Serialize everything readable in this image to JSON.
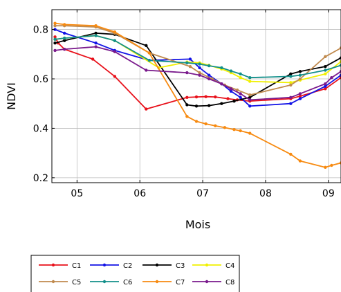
{
  "chart_data": {
    "type": "line",
    "xlabel": "Mois",
    "ylabel": "NDVI",
    "xlim": [
      4.6,
      9.2
    ],
    "ylim": [
      0.18,
      0.88
    ],
    "xticks": [
      5,
      6,
      7,
      8,
      9
    ],
    "xtick_labels": [
      "05",
      "06",
      "07",
      "08",
      "09"
    ],
    "yticks": [
      0.2,
      0.4,
      0.6,
      0.8
    ],
    "ytick_labels": [
      "0.2",
      "0.4",
      "0.6",
      "0.8"
    ],
    "grid": true,
    "legend_position": "bottom",
    "series": [
      {
        "name": "C1",
        "color": "#e8101a",
        "x": [
          4.65,
          4.7,
          4.8,
          5.25,
          5.6,
          6.1,
          6.75,
          6.9,
          7.05,
          7.2,
          7.4,
          7.55,
          7.75,
          8.4,
          8.55,
          8.95,
          9.2
        ],
        "y": [
          0.77,
          0.745,
          0.72,
          0.68,
          0.61,
          0.478,
          0.525,
          0.527,
          0.528,
          0.527,
          0.52,
          0.515,
          0.51,
          0.52,
          0.53,
          0.56,
          0.605
        ]
      },
      {
        "name": "C2",
        "color": "#1212e6",
        "x": [
          4.65,
          4.8,
          5.3,
          5.6,
          6.15,
          6.8,
          6.95,
          7.1,
          7.3,
          7.45,
          7.6,
          7.75,
          8.4,
          8.55,
          8.95,
          9.2
        ],
        "y": [
          0.8,
          0.785,
          0.745,
          0.715,
          0.675,
          0.68,
          0.645,
          0.615,
          0.58,
          0.55,
          0.525,
          0.49,
          0.5,
          0.52,
          0.57,
          0.615
        ]
      },
      {
        "name": "C3",
        "color": "#000000",
        "x": [
          4.65,
          4.8,
          5.3,
          5.6,
          6.1,
          6.75,
          6.9,
          7.1,
          7.3,
          7.5,
          7.75,
          8.4,
          8.55,
          8.95,
          9.2
        ],
        "y": [
          0.745,
          0.755,
          0.785,
          0.78,
          0.735,
          0.495,
          0.49,
          0.492,
          0.5,
          0.51,
          0.525,
          0.62,
          0.63,
          0.65,
          0.685
        ]
      },
      {
        "name": "C4",
        "color": "#f0f000",
        "x": [
          4.65,
          4.8,
          5.3,
          5.6,
          6.3,
          6.75,
          6.95,
          7.1,
          7.3,
          7.45,
          7.6,
          7.75,
          8.4,
          8.55,
          8.95,
          9.2
        ],
        "y": [
          0.76,
          0.765,
          0.775,
          0.755,
          0.645,
          0.668,
          0.665,
          0.655,
          0.64,
          0.625,
          0.605,
          0.59,
          0.585,
          0.595,
          0.62,
          0.67
        ]
      },
      {
        "name": "C5",
        "color": "#c08a4e",
        "x": [
          4.65,
          4.8,
          5.3,
          5.6,
          6.15,
          6.8,
          6.95,
          7.15,
          7.35,
          7.55,
          7.75,
          8.4,
          8.55,
          8.95,
          9.2
        ],
        "y": [
          0.815,
          0.815,
          0.81,
          0.785,
          0.705,
          0.65,
          0.625,
          0.6,
          0.575,
          0.555,
          0.535,
          0.575,
          0.6,
          0.69,
          0.725
        ]
      },
      {
        "name": "C6",
        "color": "#128f8a",
        "x": [
          4.65,
          4.8,
          5.3,
          5.6,
          6.15,
          6.75,
          6.95,
          7.1,
          7.3,
          7.45,
          7.6,
          7.75,
          8.4,
          8.55,
          8.95,
          9.2
        ],
        "y": [
          0.76,
          0.765,
          0.775,
          0.755,
          0.675,
          0.665,
          0.66,
          0.653,
          0.645,
          0.632,
          0.62,
          0.605,
          0.61,
          0.615,
          0.635,
          0.655
        ]
      },
      {
        "name": "C7",
        "color": "#f78a10",
        "x": [
          4.65,
          4.8,
          5.3,
          5.6,
          6.15,
          6.75,
          6.9,
          7.05,
          7.2,
          7.35,
          7.5,
          7.6,
          7.75,
          8.4,
          8.55,
          8.95,
          9.05,
          9.2
        ],
        "y": [
          0.825,
          0.82,
          0.815,
          0.79,
          0.705,
          0.448,
          0.428,
          0.418,
          0.41,
          0.403,
          0.395,
          0.39,
          0.38,
          0.295,
          0.268,
          0.242,
          0.25,
          0.26
        ]
      },
      {
        "name": "C8",
        "color": "#7a1a8c",
        "x": [
          4.65,
          4.8,
          5.3,
          5.6,
          6.1,
          6.75,
          6.95,
          7.1,
          7.3,
          7.45,
          7.6,
          7.75,
          8.4,
          8.55,
          8.95,
          9.05,
          9.2
        ],
        "y": [
          0.715,
          0.72,
          0.73,
          0.71,
          0.635,
          0.625,
          0.615,
          0.6,
          0.58,
          0.56,
          0.54,
          0.515,
          0.525,
          0.54,
          0.58,
          0.605,
          0.63
        ]
      }
    ]
  }
}
